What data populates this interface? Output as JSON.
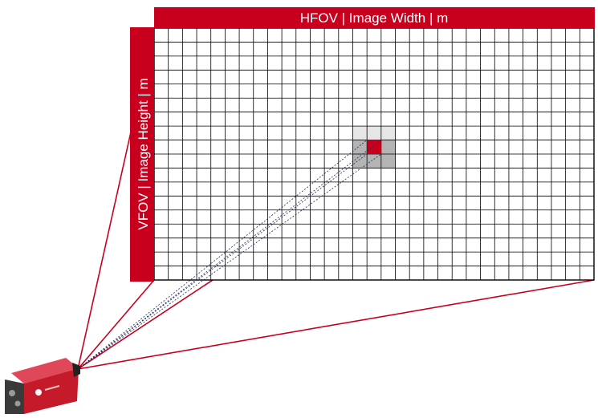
{
  "diagram": {
    "hfov_label": "HFOV | Image Width | m",
    "vfov_label": "VFOV | Image Height | m",
    "grid": {
      "columns": 31,
      "rows": 18
    },
    "highlight_pixel": {
      "column": 15,
      "row": 8
    },
    "colors": {
      "accent": "#c8001e",
      "grid_line": "#000000",
      "pixel_halo_outer": "#e6e6e6",
      "pixel_halo_inner": "#b4b4b4",
      "camera_body": "#c41a2a",
      "camera_rear": "#3a3a3a"
    },
    "icons": [
      "thermal-camera-icon"
    ]
  }
}
